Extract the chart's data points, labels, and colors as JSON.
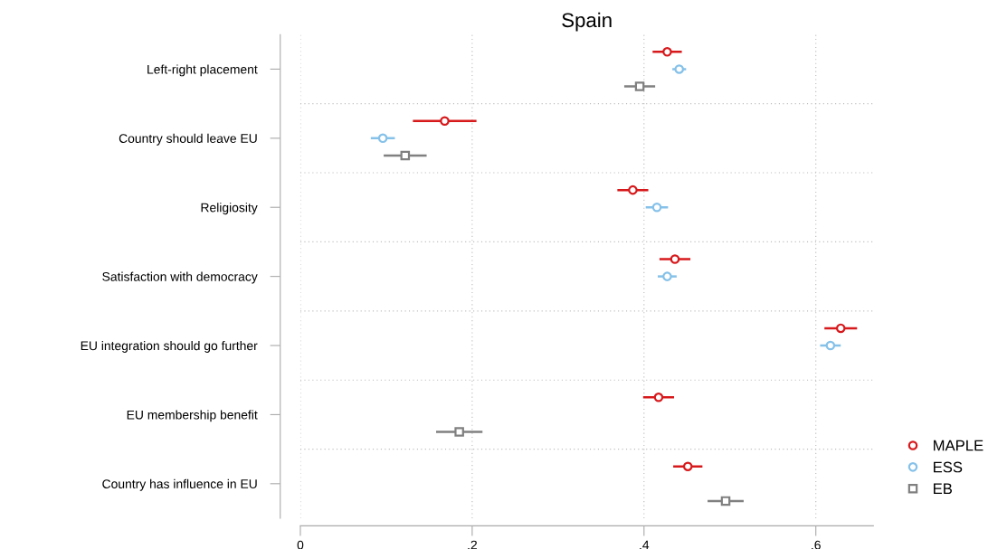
{
  "chart_data": {
    "type": "scatter",
    "orientation": "horizontal",
    "title": "Spain",
    "categories": [
      "Left-right placement",
      "Country should leave EU",
      "Religiosity",
      "Satisfaction with democracy",
      "EU integration should go further",
      "EU membership benefit",
      "Country has influence in EU"
    ],
    "series": [
      {
        "name": "MAPLE",
        "color": "#d7191c",
        "marker": "circle",
        "values": [
          0.427,
          0.168,
          0.387,
          0.436,
          0.629,
          0.417,
          0.451
        ],
        "errors": [
          0.017,
          0.037,
          0.018,
          0.018,
          0.019,
          0.018,
          0.017
        ]
      },
      {
        "name": "ESS",
        "color": "#85c1e9",
        "marker": "circle",
        "values": [
          0.441,
          0.096,
          0.415,
          0.427,
          0.617,
          null,
          null
        ],
        "errors": [
          0.008,
          0.014,
          0.013,
          0.011,
          0.012,
          null,
          null
        ]
      },
      {
        "name": "EB",
        "color": "#808080",
        "marker": "square",
        "values": [
          0.395,
          0.122,
          null,
          null,
          null,
          0.185,
          0.495
        ],
        "errors": [
          0.018,
          0.025,
          null,
          null,
          null,
          0.027,
          0.021
        ]
      }
    ],
    "xlim": [
      0,
      0.667
    ],
    "xticks": [
      {
        "value": 0,
        "label": "0"
      },
      {
        "value": 0.2,
        "label": ".2"
      },
      {
        "value": 0.4,
        "label": ".4"
      },
      {
        "value": 0.6,
        "label": ".6"
      }
    ],
    "grid": true,
    "legend": "bottom right"
  }
}
